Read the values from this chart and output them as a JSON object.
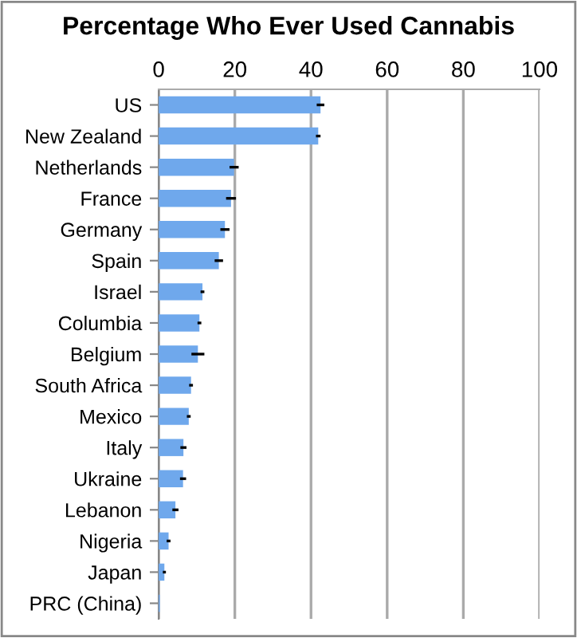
{
  "chart_data": {
    "type": "bar",
    "orientation": "horizontal",
    "title": "Percentage Who Ever Used Cannabis",
    "categories": [
      "US",
      "New Zealand",
      "Netherlands",
      "France",
      "Germany",
      "Spain",
      "Israel",
      "Columbia",
      "Belgium",
      "South Africa",
      "Mexico",
      "Italy",
      "Ukraine",
      "Lebanon",
      "Nigeria",
      "Japan",
      "PRC (China)"
    ],
    "values": [
      42.5,
      41.9,
      19.8,
      19.0,
      17.4,
      15.8,
      11.5,
      10.7,
      10.3,
      8.5,
      7.9,
      6.5,
      6.4,
      4.4,
      2.6,
      1.5,
      0.3
    ],
    "errors": [
      1.0,
      0.6,
      1.2,
      1.3,
      1.2,
      1.1,
      0.5,
      0.5,
      1.7,
      0.5,
      0.5,
      0.8,
      0.8,
      0.8,
      0.5,
      0.4,
      null
    ],
    "color": "#6fa8ec",
    "xlim": [
      0,
      100
    ],
    "xticks": [
      0,
      20,
      40,
      60,
      80,
      100
    ],
    "grid": "x"
  }
}
